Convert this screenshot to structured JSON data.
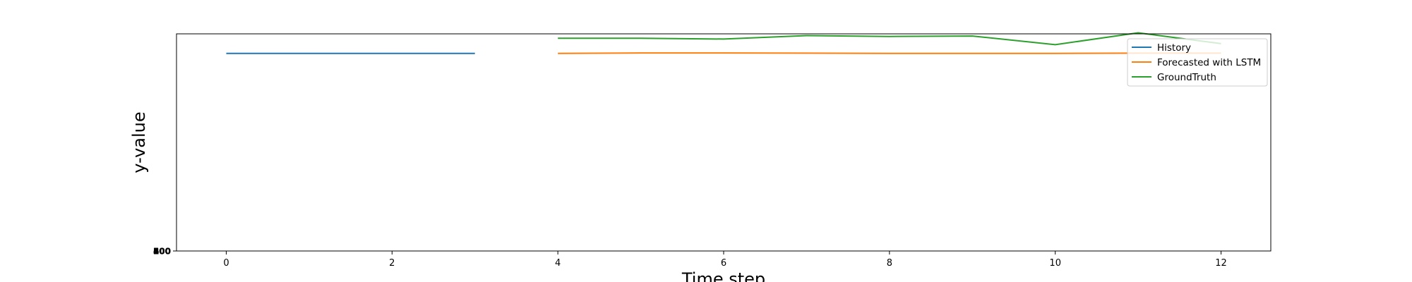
{
  "chart_data": {
    "type": "line",
    "xlabel": "Time step",
    "ylabel": "y-value",
    "xlim": [
      -0.6,
      12.6
    ],
    "ylim": [
      0,
      100
    ],
    "xticks": [
      0,
      2,
      4,
      6,
      8,
      10,
      12
    ],
    "xtick_labels": [
      "0",
      "2",
      "4",
      "6",
      "8",
      "10",
      "12"
    ],
    "ytick_labels": [
      "100",
      "200",
      "300",
      "400",
      "500",
      "600"
    ],
    "legend_position": "upper right",
    "grid": false,
    "series": [
      {
        "name": "History",
        "color": "#1f77b4",
        "x": [
          0,
          1,
          2,
          3
        ],
        "y": [
          91,
          91,
          91,
          91
        ]
      },
      {
        "name": "Forecasted with LSTM",
        "color": "#ff7f0e",
        "x": [
          4,
          5,
          6,
          7,
          8,
          9,
          10,
          11,
          12
        ],
        "y": [
          91,
          91.2,
          91.2,
          91.1,
          91,
          91,
          91,
          91.1,
          91.1
        ]
      },
      {
        "name": "GroundTruth",
        "color": "#2ca02c",
        "x": [
          4,
          5,
          6,
          7,
          8,
          9,
          10,
          11,
          12
        ],
        "y": [
          98,
          98,
          97.6,
          99.2,
          98.8,
          99,
          95,
          100.5,
          95.5
        ]
      }
    ]
  }
}
